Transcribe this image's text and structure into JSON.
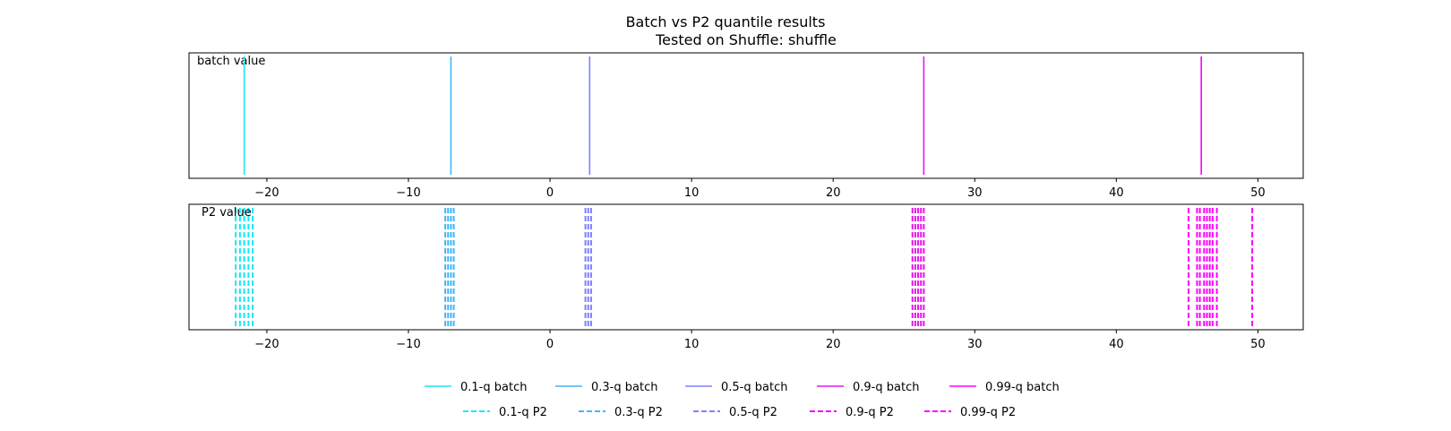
{
  "chart_data": {
    "type": "line",
    "title": "Batch vs P2 quantile results",
    "subtitle": "Tested on Shuffle: shuffle",
    "xlim": [
      -25.5,
      53.2
    ],
    "xticks": [
      -20,
      -10,
      0,
      10,
      20,
      30,
      40,
      50
    ],
    "xtick_labels": [
      "−20",
      "−10",
      "0",
      "10",
      "20",
      "30",
      "40",
      "50"
    ],
    "grid": false,
    "legend_position": "bottom-center",
    "panels": [
      {
        "label": "batch value"
      },
      {
        "label": "P2 value"
      }
    ],
    "batch_series": [
      {
        "name": "0.1-q batch",
        "color": "#17e8f4",
        "value": -21.6
      },
      {
        "name": "0.3-q batch",
        "color": "#42b6f7",
        "value": -7.0
      },
      {
        "name": "0.5-q batch",
        "color": "#8080ff",
        "value": 2.8
      },
      {
        "name": "0.9-q batch",
        "color": "#ea14ef",
        "value": 26.4
      },
      {
        "name": "0.99-q batch",
        "color": "#ff00ff",
        "value": 46.0
      }
    ],
    "p2_series": [
      {
        "name": "0.1-q P2",
        "color": "#17e8f4",
        "values": [
          -22.2,
          -21.9,
          -21.6,
          -21.3,
          -21.0
        ]
      },
      {
        "name": "0.3-q P2",
        "color": "#42b6f7",
        "values": [
          -7.4,
          -7.2,
          -7.0,
          -6.8
        ]
      },
      {
        "name": "0.5-q P2",
        "color": "#8080ff",
        "values": [
          2.5,
          2.7,
          2.9
        ]
      },
      {
        "name": "0.9-q P2",
        "color": "#ea14ef",
        "values": [
          25.6,
          25.8,
          26.0,
          26.2,
          26.4
        ]
      },
      {
        "name": "0.99-q P2",
        "color": "#ff00ff",
        "values": [
          45.1,
          45.7,
          45.9,
          46.2,
          46.4,
          46.6,
          46.8,
          47.1,
          49.6
        ]
      }
    ]
  }
}
